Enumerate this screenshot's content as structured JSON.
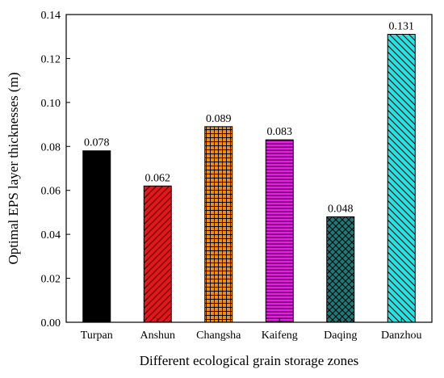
{
  "chart_data": {
    "type": "bar",
    "xlabel": "Different ecological grain storage zones",
    "ylabel": "Optimal EPS layer thicknesses (m)",
    "ylim": [
      0,
      0.14
    ],
    "yticks": [
      "0.00",
      "0.02",
      "0.04",
      "0.06",
      "0.08",
      "0.10",
      "0.12",
      "0.14"
    ],
    "grid": false,
    "categories": [
      "Turpan",
      "Anshun",
      "Changsha",
      "Kaifeng",
      "Daqing",
      "Danzhou"
    ],
    "values": [
      0.078,
      0.062,
      0.089,
      0.083,
      0.048,
      0.131
    ],
    "data_labels": [
      "0.078",
      "0.062",
      "0.089",
      "0.083",
      "0.048",
      "0.131"
    ],
    "colors": [
      "#000000",
      "#e8141a",
      "#f28a16",
      "#f217ef",
      "#1b7b7b",
      "#1fe5e5"
    ],
    "patterns": [
      "solid",
      "diagonal-forward",
      "grid",
      "horizontal",
      "crosshatch",
      "diagonal-backward"
    ]
  }
}
